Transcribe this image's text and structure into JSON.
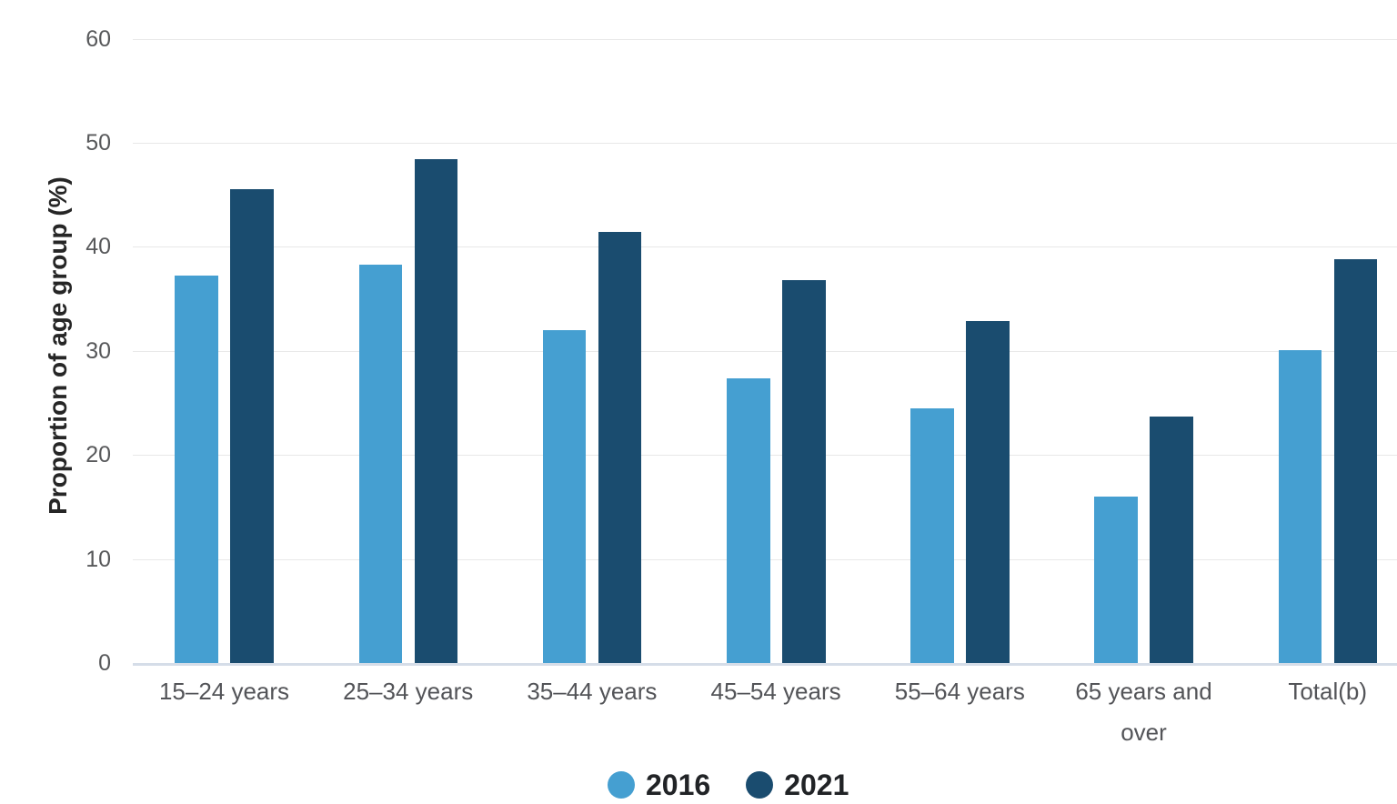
{
  "chart_data": {
    "type": "bar",
    "title": "",
    "xlabel": "",
    "ylabel": "Proportion of age group (%)",
    "categories": [
      "15–24 years",
      "25–34 years",
      "35–44 years",
      "45–54 years",
      "55–64 years",
      "65 years and over",
      "Total(b)"
    ],
    "series": [
      {
        "name": "2016",
        "color": "#459FD1",
        "values": [
          37.2,
          38.3,
          32.0,
          27.4,
          24.5,
          16.0,
          30.1
        ]
      },
      {
        "name": "2021",
        "color": "#1A4C6F",
        "values": [
          45.5,
          48.4,
          41.4,
          36.8,
          32.9,
          23.7,
          38.8
        ]
      }
    ],
    "ylim": [
      0,
      60
    ],
    "yticks": [
      0,
      10,
      20,
      30,
      40,
      50,
      60
    ],
    "grid": true,
    "legend_position": "bottom",
    "colors": {
      "gridline": "#e8e8e8",
      "axis_baseline": "#d5dde8",
      "tick_text": "#58595b",
      "category_text": "#535458",
      "axis_title_text": "#262626",
      "legend_text": "#212326",
      "background": "#ffffff"
    }
  }
}
